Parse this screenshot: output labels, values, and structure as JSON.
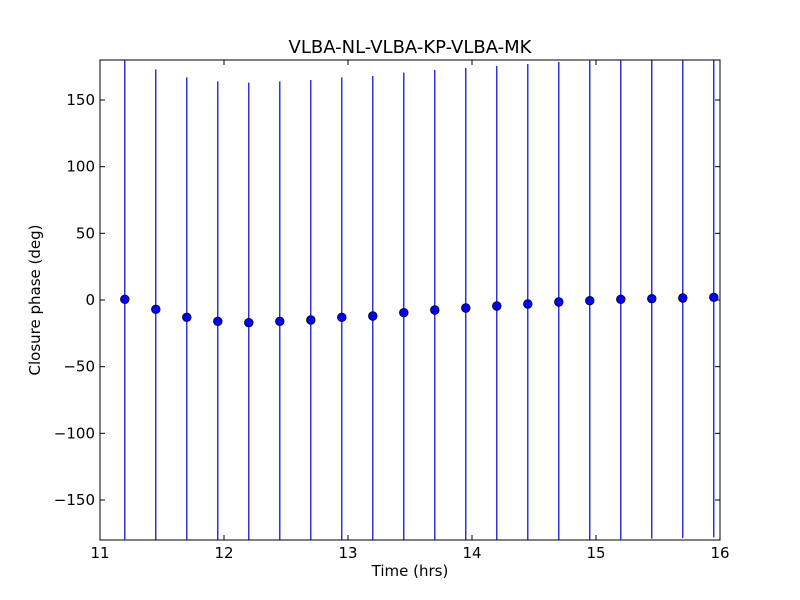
{
  "chart_data": {
    "type": "scatter",
    "title": "VLBA-NL-VLBA-KP-VLBA-MK",
    "xlabel": "Time (hrs)",
    "ylabel": "Closure phase (deg)",
    "xlim": [
      11,
      16
    ],
    "ylim": [
      -180,
      180
    ],
    "xticks": [
      11,
      12,
      13,
      14,
      15,
      16
    ],
    "xtick_labels": [
      "11",
      "12",
      "13",
      "14",
      "15",
      "16"
    ],
    "yticks": [
      -150,
      -100,
      -50,
      0,
      50,
      100,
      150
    ],
    "ytick_labels": [
      "−150",
      "−100",
      "−50",
      "0",
      "50",
      "100",
      "150"
    ],
    "grid": false,
    "series": [
      {
        "marker": "circle",
        "color": "#0000ff",
        "error_bar_color": "#0000cc",
        "points": [
          {
            "x": 11.2,
            "y": 0.5,
            "y_err": 180
          },
          {
            "x": 11.45,
            "y": -7.0,
            "y_err": 180
          },
          {
            "x": 11.7,
            "y": -13.0,
            "y_err": 180
          },
          {
            "x": 11.95,
            "y": -16.0,
            "y_err": 180
          },
          {
            "x": 12.2,
            "y": -17.0,
            "y_err": 180
          },
          {
            "x": 12.45,
            "y": -16.0,
            "y_err": 180
          },
          {
            "x": 12.7,
            "y": -15.0,
            "y_err": 180
          },
          {
            "x": 12.95,
            "y": -13.0,
            "y_err": 180
          },
          {
            "x": 13.2,
            "y": -12.0,
            "y_err": 180
          },
          {
            "x": 13.45,
            "y": -9.5,
            "y_err": 180
          },
          {
            "x": 13.7,
            "y": -7.5,
            "y_err": 180
          },
          {
            "x": 13.95,
            "y": -6.0,
            "y_err": 180
          },
          {
            "x": 14.2,
            "y": -4.5,
            "y_err": 180
          },
          {
            "x": 14.45,
            "y": -3.0,
            "y_err": 180
          },
          {
            "x": 14.7,
            "y": -1.5,
            "y_err": 180
          },
          {
            "x": 14.95,
            "y": -0.5,
            "y_err": 180
          },
          {
            "x": 15.2,
            "y": 0.5,
            "y_err": 180
          },
          {
            "x": 15.45,
            "y": 1.0,
            "y_err": 180
          },
          {
            "x": 15.7,
            "y": 1.5,
            "y_err": 180
          },
          {
            "x": 15.95,
            "y": 2.0,
            "y_err": 180
          }
        ]
      }
    ]
  }
}
